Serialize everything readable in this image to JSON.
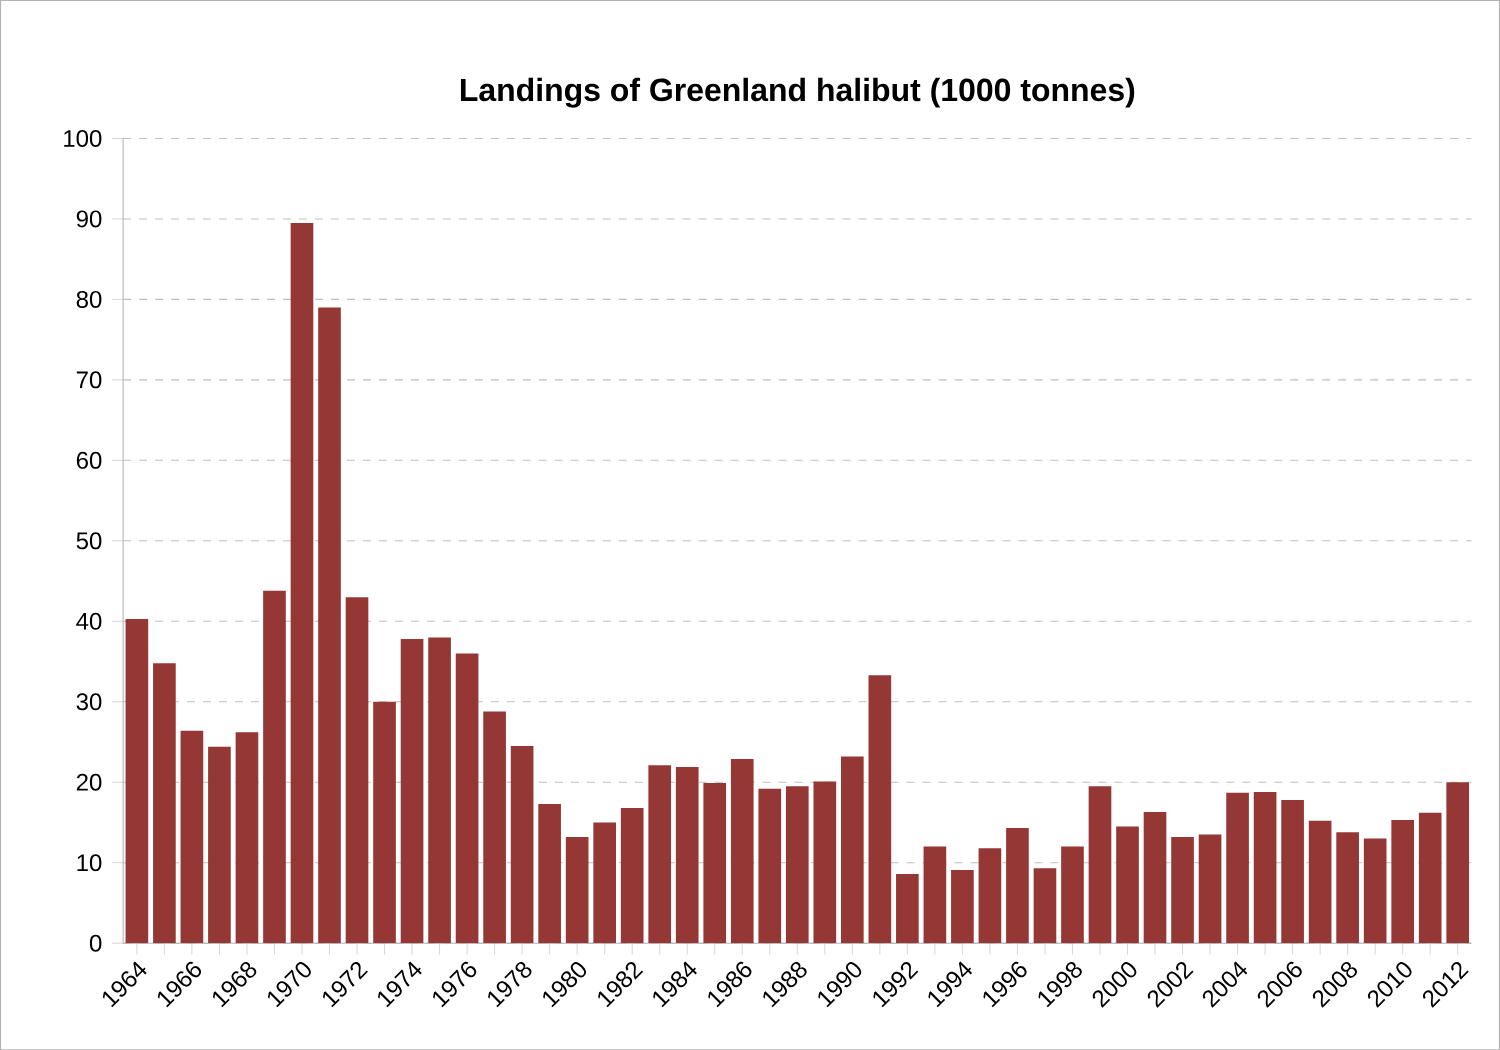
{
  "chart_data": {
    "type": "bar",
    "title": "Landings of Greenland halibut (1000 tonnes)",
    "categories": [
      "1964",
      null,
      "1966",
      null,
      "1968",
      null,
      "1970",
      null,
      "1972",
      null,
      "1974",
      null,
      "1976",
      null,
      "1978",
      null,
      "1980",
      null,
      "1982",
      null,
      "1984",
      null,
      "1986",
      null,
      "1988",
      null,
      "1990",
      null,
      "1992",
      null,
      "1994",
      null,
      "1996",
      null,
      "1998",
      null,
      "2000",
      null,
      "2002",
      null,
      "2004",
      null,
      "2006",
      null,
      "2008",
      null,
      "2010",
      null,
      "2012"
    ],
    "values": [
      40.3,
      34.8,
      26.4,
      24.4,
      26.2,
      43.8,
      89.5,
      79,
      43,
      30,
      37.8,
      38,
      36,
      28.8,
      24.5,
      17.3,
      13.2,
      15,
      16.8,
      22.1,
      21.9,
      19.9,
      22.9,
      19.2,
      19.5,
      20.1,
      23.2,
      33.3,
      8.6,
      12,
      9.1,
      11.8,
      14.3,
      9.3,
      12,
      19.5,
      14.5,
      16.3,
      13.2,
      13.5,
      18.7,
      18.8,
      17.8,
      15.2,
      13.8,
      13,
      15.3,
      16.2,
      20
    ],
    "color": "#953735",
    "ylim": [
      0,
      100
    ],
    "yticks": [
      0,
      10,
      20,
      30,
      40,
      50,
      60,
      70,
      80,
      90,
      100
    ],
    "grid": "y"
  }
}
